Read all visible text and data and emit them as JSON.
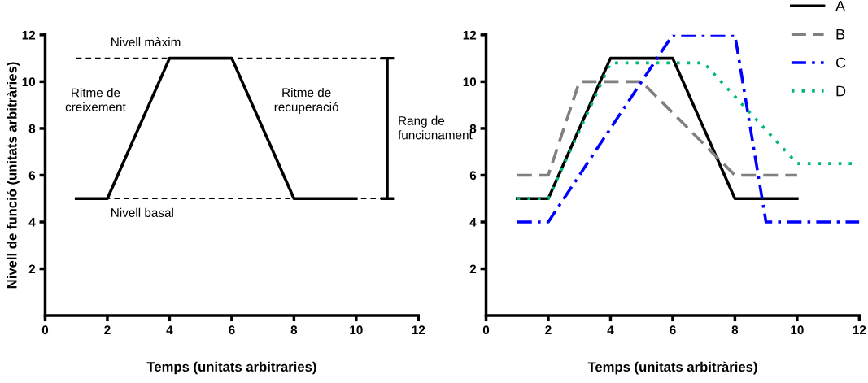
{
  "chart_data": [
    {
      "type": "line",
      "xlabel": "Temps (unitats arbitraries)",
      "ylabel": "Nivell de funció (unitats arbitràries)",
      "xlim": [
        0,
        12
      ],
      "xticks": [
        0,
        2,
        4,
        6,
        8,
        10,
        12
      ],
      "ylim": [
        0,
        12
      ],
      "yticks": [
        2,
        4,
        6,
        8,
        10,
        12
      ],
      "grid": false,
      "legend": false,
      "series": [
        {
          "x": [
            1,
            2,
            4,
            6,
            8,
            10
          ],
          "values": [
            5,
            5,
            11,
            11,
            5,
            5
          ],
          "color": "#000000",
          "line_style": "solid"
        }
      ],
      "ref_lines": [
        {
          "axis": "y",
          "value": 11,
          "label": "Nivell màxim",
          "color": "#000000",
          "line_style": "dashed"
        },
        {
          "axis": "y",
          "value": 5,
          "label": "Nivell basal",
          "color": "#000000",
          "line_style": "dashed"
        }
      ],
      "annotations": [
        "Ritme de\ncreixement",
        "Ritme de\nrecuperació",
        "Rang de\nfuncionament"
      ]
    },
    {
      "type": "line",
      "xlabel": "Temps (unitats arbitràries)",
      "xlim": [
        0,
        12
      ],
      "xticks": [
        0,
        2,
        4,
        6,
        8,
        10,
        12
      ],
      "ylim": [
        0,
        12
      ],
      "yticks": [
        2,
        4,
        6,
        8,
        10,
        12
      ],
      "grid": false,
      "legend": "top right",
      "series": [
        {
          "name": "A",
          "x": [
            1,
            2,
            4,
            6,
            8,
            10
          ],
          "values": [
            5,
            5,
            11,
            11,
            5,
            5
          ],
          "color": "#000000",
          "line_style": "solid"
        },
        {
          "name": "B",
          "x": [
            1,
            2,
            3,
            5,
            8,
            10
          ],
          "values": [
            6,
            6,
            10,
            10,
            6,
            6
          ],
          "color": "#808080",
          "line_style": "dashed"
        },
        {
          "name": "C",
          "x": [
            1,
            2,
            6,
            8,
            9,
            12
          ],
          "values": [
            4,
            4,
            12,
            12,
            4,
            4
          ],
          "color": "#0000ff",
          "line_style": "dashdot"
        },
        {
          "name": "D",
          "x": [
            1,
            2,
            4,
            7,
            10,
            12
          ],
          "values": [
            5,
            5,
            10.8,
            10.8,
            6.5,
            6.5
          ],
          "color": "#00b877",
          "line_style": "dotted"
        }
      ]
    }
  ]
}
